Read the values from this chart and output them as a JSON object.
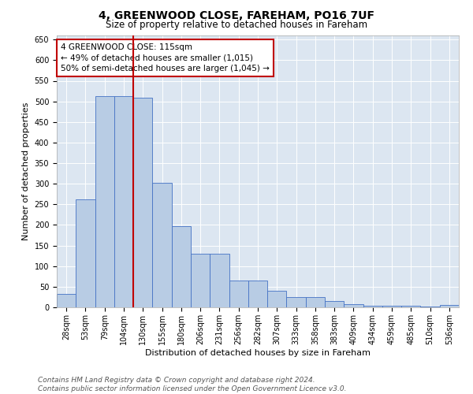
{
  "title": "4, GREENWOOD CLOSE, FAREHAM, PO16 7UF",
  "subtitle": "Size of property relative to detached houses in Fareham",
  "xlabel": "Distribution of detached houses by size in Fareham",
  "ylabel": "Number of detached properties",
  "categories": [
    "28sqm",
    "53sqm",
    "79sqm",
    "104sqm",
    "130sqm",
    "155sqm",
    "180sqm",
    "206sqm",
    "231sqm",
    "256sqm",
    "282sqm",
    "307sqm",
    "333sqm",
    "358sqm",
    "383sqm",
    "409sqm",
    "434sqm",
    "459sqm",
    "485sqm",
    "510sqm",
    "536sqm"
  ],
  "values": [
    33,
    263,
    513,
    513,
    508,
    302,
    197,
    131,
    131,
    65,
    65,
    40,
    24,
    24,
    15,
    8,
    4,
    4,
    4,
    2,
    6
  ],
  "bar_color": "#b8cce4",
  "bar_edge_color": "#4472c4",
  "vline_x": 3.5,
  "vline_color": "#c00000",
  "annotation_text": "4 GREENWOOD CLOSE: 115sqm\n← 49% of detached houses are smaller (1,015)\n50% of semi-detached houses are larger (1,045) →",
  "annotation_box_color": "white",
  "annotation_box_edge_color": "#c00000",
  "ylim": [
    0,
    660
  ],
  "yticks": [
    0,
    50,
    100,
    150,
    200,
    250,
    300,
    350,
    400,
    450,
    500,
    550,
    600,
    650
  ],
  "background_color": "#dce6f1",
  "footer_line1": "Contains HM Land Registry data © Crown copyright and database right 2024.",
  "footer_line2": "Contains public sector information licensed under the Open Government Licence v3.0.",
  "title_fontsize": 10,
  "subtitle_fontsize": 8.5,
  "xlabel_fontsize": 8,
  "ylabel_fontsize": 8,
  "tick_fontsize": 7,
  "annotation_fontsize": 7.5,
  "footer_fontsize": 6.5
}
